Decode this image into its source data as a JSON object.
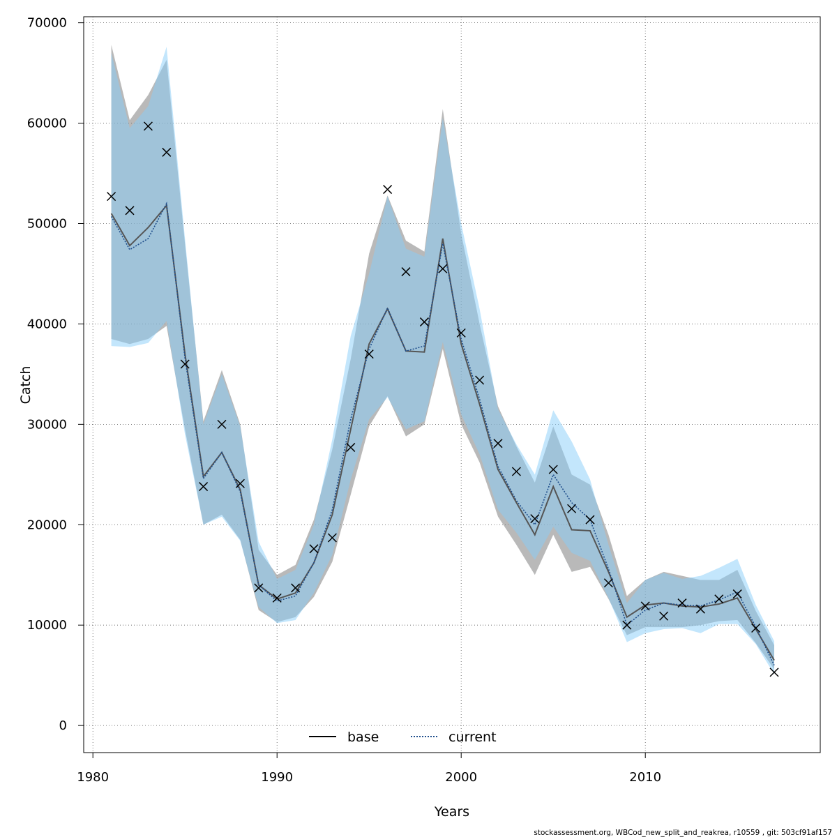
{
  "chart_data": {
    "type": "line",
    "xlabel": "Years",
    "ylabel": "Catch",
    "xlim": [
      1979.5,
      2019.5
    ],
    "ylim": [
      -2700,
      70600
    ],
    "x_ticks": [
      1980,
      1990,
      2000,
      2010
    ],
    "x_tick_labels": [
      "1980",
      "1990",
      "2000",
      "2010"
    ],
    "y_ticks": [
      0,
      10000,
      20000,
      30000,
      40000,
      50000,
      60000,
      70000
    ],
    "y_tick_labels": [
      "0",
      "10000",
      "20000",
      "30000",
      "40000",
      "50000",
      "60000",
      "70000"
    ],
    "grid": true,
    "legend_position": "bottom-center",
    "years": [
      1981,
      1982,
      1983,
      1984,
      1985,
      1986,
      1987,
      1988,
      1989,
      1990,
      1991,
      1992,
      1993,
      1994,
      1995,
      1996,
      1997,
      1998,
      1999,
      2000,
      2001,
      2002,
      2003,
      2004,
      2005,
      2006,
      2007,
      2008,
      2009,
      2010,
      2011,
      2012,
      2013,
      2014,
      2015,
      2016,
      2017
    ],
    "series": [
      {
        "name": "base",
        "line_style": "solid",
        "color": "#555555",
        "band_color": "#808080",
        "values": [
          51000,
          47800,
          49600,
          51800,
          37000,
          24800,
          27200,
          23500,
          14000,
          12600,
          13200,
          16200,
          21000,
          29500,
          38000,
          41500,
          37300,
          37200,
          48500,
          38000,
          32000,
          25500,
          22200,
          19000,
          23800,
          19500,
          19400,
          15300,
          10800,
          12000,
          12200,
          11900,
          11800,
          12100,
          12700,
          9600,
          6500
        ],
        "lower": [
          38500,
          38000,
          38500,
          39800,
          29500,
          20000,
          21000,
          18500,
          11500,
          10300,
          10800,
          12800,
          16300,
          23000,
          29800,
          32800,
          28800,
          30000,
          37500,
          30000,
          26200,
          20800,
          18000,
          15000,
          19000,
          15300,
          15800,
          12600,
          9000,
          9800,
          9800,
          9800,
          10000,
          10400,
          10500,
          8200,
          5600
        ],
        "upper": [
          67800,
          60300,
          62800,
          66300,
          48000,
          30300,
          35400,
          30000,
          17500,
          15000,
          16000,
          20500,
          27500,
          36500,
          47000,
          52800,
          48300,
          47200,
          61400,
          49000,
          40000,
          31800,
          27800,
          24200,
          29800,
          25000,
          24000,
          19000,
          12900,
          14500,
          15300,
          14900,
          14500,
          14500,
          15500,
          11400,
          8000
        ]
      },
      {
        "name": "current",
        "line_style": "dotted",
        "color": "#1f4e8c",
        "band_color": "#87cefa",
        "values": [
          50700,
          47400,
          48500,
          52000,
          36600,
          24600,
          27200,
          23300,
          14000,
          12400,
          12900,
          16200,
          21500,
          30500,
          37500,
          41600,
          37300,
          37800,
          48000,
          38500,
          32500,
          25800,
          22400,
          20000,
          25000,
          22200,
          20500,
          15600,
          10000,
          11500,
          12200,
          12000,
          11900,
          12500,
          13300,
          9800,
          6000
        ],
        "lower": [
          37800,
          37700,
          38100,
          40300,
          29000,
          20000,
          20800,
          18400,
          11800,
          10200,
          10500,
          13200,
          17000,
          24500,
          30500,
          32700,
          29500,
          30300,
          38200,
          31000,
          27000,
          21500,
          19200,
          16500,
          19800,
          17200,
          16400,
          12700,
          8300,
          9200,
          9600,
          9700,
          9200,
          10100,
          10100,
          8100,
          5100
        ],
        "upper": [
          67000,
          59500,
          61700,
          67600,
          48500,
          30000,
          35000,
          29800,
          18300,
          14600,
          15500,
          20000,
          28500,
          38800,
          45000,
          52700,
          47500,
          46700,
          60500,
          50000,
          41500,
          31500,
          28000,
          25000,
          31400,
          28300,
          24500,
          18000,
          12200,
          14500,
          15200,
          14600,
          14900,
          15700,
          16600,
          12000,
          8400
        ]
      }
    ],
    "observations": {
      "marker": "x",
      "values": [
        52700,
        51300,
        59700,
        57100,
        36000,
        23800,
        30000,
        24100,
        13700,
        12700,
        13700,
        17600,
        18700,
        27700,
        37000,
        53400,
        45200,
        40200,
        45500,
        39100,
        34400,
        28100,
        25300,
        20600,
        25500,
        21600,
        20500,
        14200,
        10000,
        11900,
        10900,
        12200,
        11600,
        12600,
        13100,
        9700,
        5300
      ]
    }
  },
  "footer_note": "stockassessment.org, WBCod_new_split_and_reakrea, r10559 , git: 503cf91af157"
}
